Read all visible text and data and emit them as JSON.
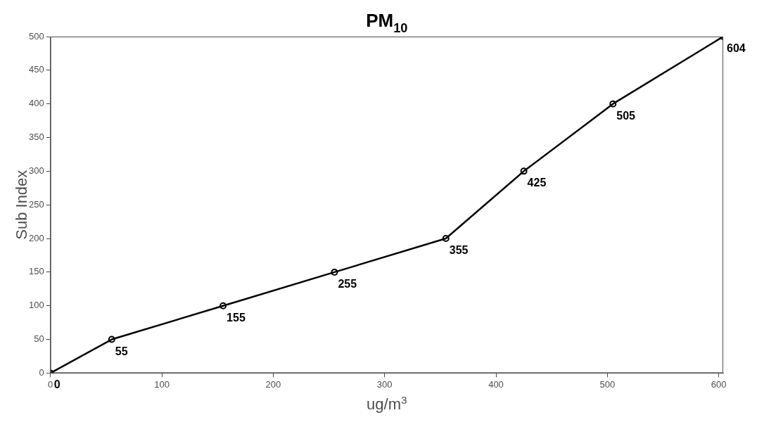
{
  "chart_data": {
    "type": "line",
    "title": "PM$_{10}$",
    "xlabel": "ug/m$^{3}$",
    "ylabel": "Sub Index",
    "x": [
      0,
      55,
      155,
      255,
      355,
      425,
      505,
      604
    ],
    "series": [
      {
        "color": "#000000",
        "values": [
          0,
          50,
          100,
          150,
          200,
          300,
          400,
          500
        ]
      }
    ],
    "xlim": [
      0,
      604
    ],
    "xticks": [
      0,
      100,
      200,
      300,
      400,
      500,
      600
    ],
    "ylim": [
      0,
      500
    ],
    "yticks": [
      0,
      50,
      100,
      150,
      200,
      250,
      300,
      350,
      400,
      450,
      500
    ],
    "grid": false,
    "legend": false,
    "marker": "circle",
    "line_style": "solid",
    "annotations": [
      {
        "text": "0",
        "x": 0,
        "y": 0
      },
      {
        "text": "55",
        "x": 55,
        "y": 50
      },
      {
        "text": "155",
        "x": 155,
        "y": 100
      },
      {
        "text": "255",
        "x": 255,
        "y": 150
      },
      {
        "text": "355",
        "x": 355,
        "y": 200
      },
      {
        "text": "425",
        "x": 425,
        "y": 300
      },
      {
        "text": "505",
        "x": 505,
        "y": 400
      },
      {
        "text": "604",
        "x": 604,
        "y": 500
      }
    ]
  }
}
